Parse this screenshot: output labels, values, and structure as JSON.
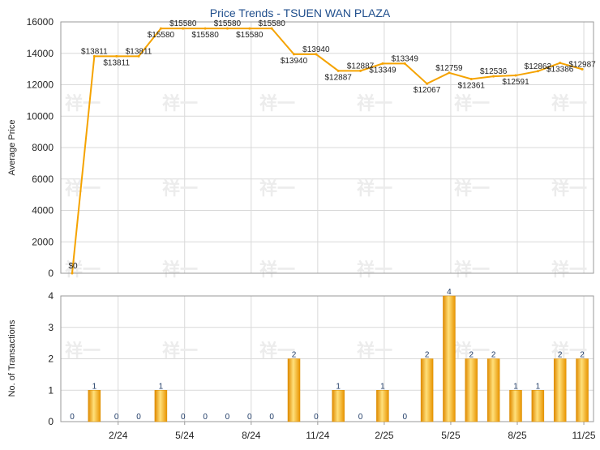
{
  "chart_data": [
    {
      "type": "line",
      "title": "Price Trends - TSUEN WAN PLAZA",
      "ylabel": "Average Price",
      "ylim": [
        0,
        16000
      ],
      "yticks": [
        0,
        2000,
        4000,
        6000,
        8000,
        10000,
        12000,
        14000,
        16000
      ],
      "grid": true,
      "color": "#f5a300",
      "x_ticks": [
        "2/24",
        "5/24",
        "8/24",
        "11/24",
        "2/25",
        "5/25",
        "8/25",
        "11/25"
      ],
      "values": [
        0,
        13811,
        13811,
        13811,
        15580,
        15580,
        15580,
        15580,
        15580,
        15580,
        13940,
        13940,
        12887,
        12887,
        13349,
        13349,
        12067,
        12759,
        12361,
        12536,
        12591,
        12862,
        13386,
        12987
      ],
      "labels": [
        "$0",
        "$13811",
        "$13811",
        "$13811",
        "$15580",
        "$15580",
        "$15580",
        "$15580",
        "$15580",
        "$15580",
        "$13940",
        "$13940",
        "$12887",
        "$12887",
        "$13349",
        "$13349",
        "$12067",
        "$12759",
        "$12361",
        "$12536",
        "$12591",
        "$12862",
        "$13386",
        "$12987"
      ]
    },
    {
      "type": "bar",
      "ylabel": "No. of Transactions",
      "ylim": [
        0,
        4
      ],
      "yticks": [
        0,
        1,
        2,
        3,
        4
      ],
      "grid": true,
      "color": "#f5a300",
      "x_ticks": [
        "2/24",
        "5/24",
        "8/24",
        "11/24",
        "2/25",
        "5/25",
        "8/25",
        "11/25"
      ],
      "values": [
        0,
        1,
        0,
        0,
        1,
        0,
        0,
        0,
        0,
        0,
        2,
        0,
        1,
        0,
        1,
        0,
        2,
        4,
        2,
        2,
        1,
        1,
        2,
        2
      ]
    }
  ]
}
